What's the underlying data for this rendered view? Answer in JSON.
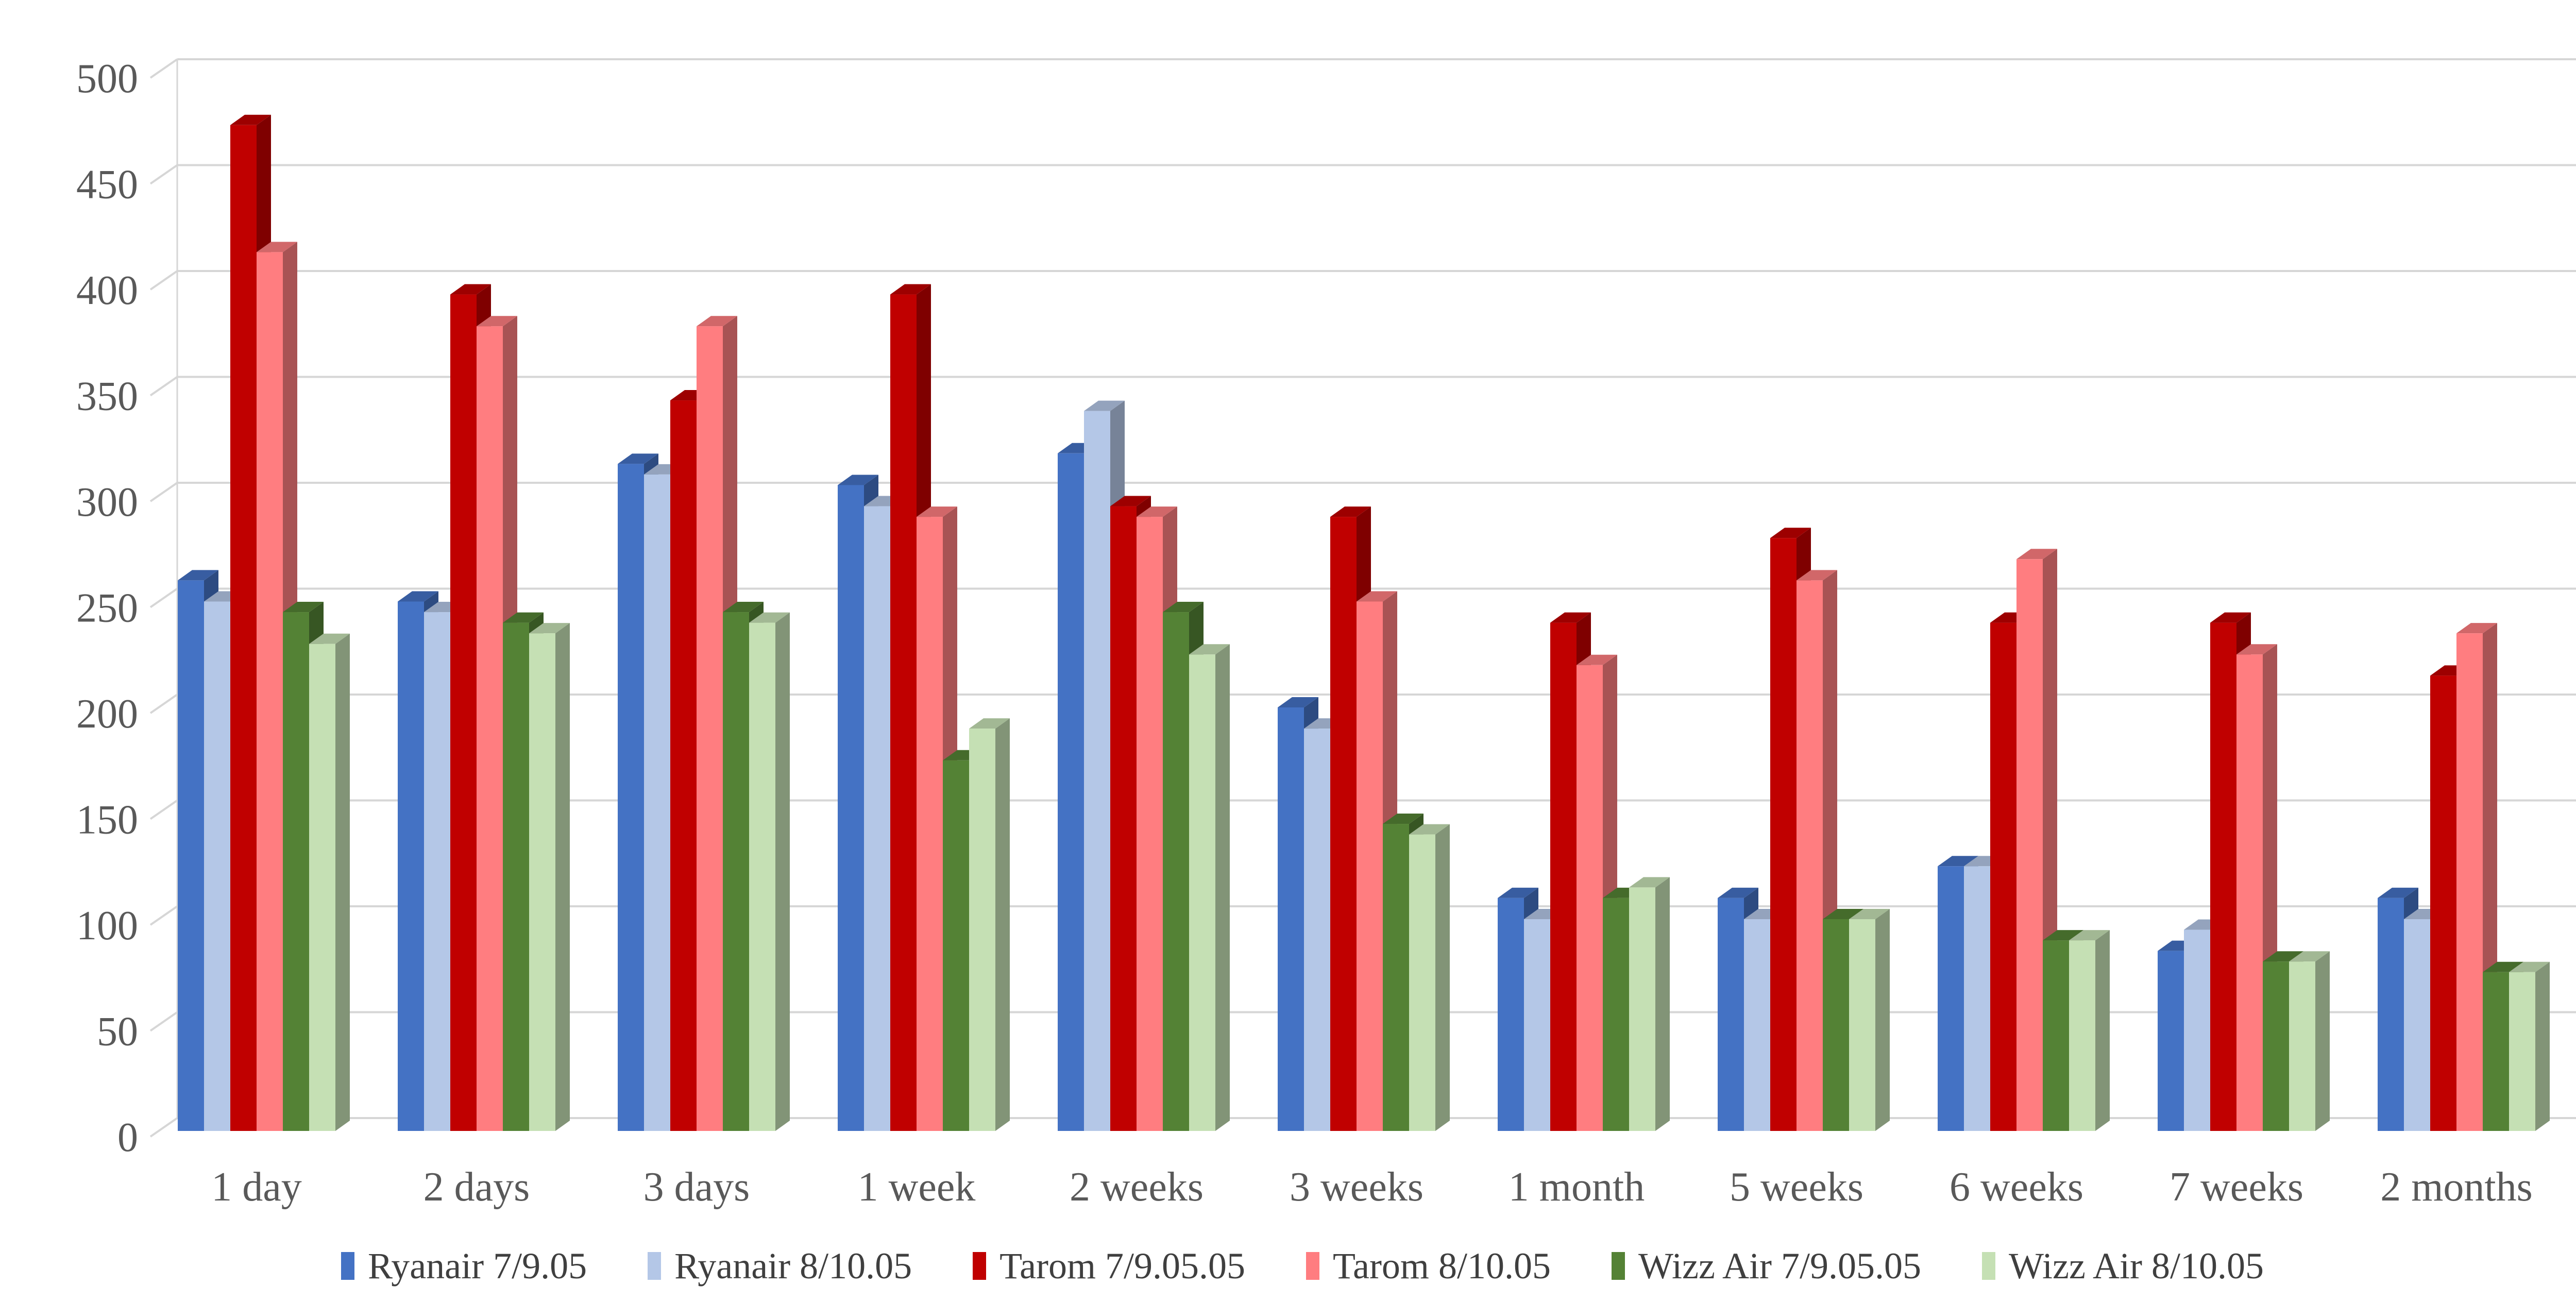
{
  "chart_data": {
    "type": "bar",
    "subtype": "3d-clustered-column",
    "title": "",
    "xlabel": "",
    "ylabel": "",
    "categories": [
      "1 day",
      "2 days",
      "3 days",
      "1 week",
      "2 weeks",
      "3 weeks",
      "1 month",
      "5 weeks",
      "6 weeks",
      "7 weeks",
      "2 months"
    ],
    "series": [
      {
        "name": "Ryanair 7/9.05",
        "color": "#4472C4",
        "values": [
          260,
          250,
          315,
          305,
          320,
          200,
          110,
          110,
          125,
          85,
          110
        ]
      },
      {
        "name": "Ryanair 8/10.05",
        "color": "#B4C7E7",
        "values": [
          250,
          245,
          310,
          295,
          340,
          190,
          100,
          100,
          125,
          95,
          100
        ]
      },
      {
        "name": "Tarom 7/9.05.05",
        "color": "#C00000",
        "values": [
          475,
          395,
          345,
          395,
          295,
          290,
          240,
          280,
          240,
          240,
          215
        ]
      },
      {
        "name": "Tarom 8/10.05",
        "color": "#FF7D80",
        "values": [
          415,
          380,
          380,
          290,
          290,
          250,
          220,
          260,
          270,
          225,
          235
        ]
      },
      {
        "name": "Wizz Air 7/9.05.05",
        "color": "#548235",
        "values": [
          245,
          240,
          245,
          175,
          245,
          145,
          110,
          100,
          90,
          80,
          75
        ]
      },
      {
        "name": "Wizz Air 8/10.05",
        "color": "#C5E0B4",
        "values": [
          230,
          235,
          240,
          190,
          225,
          140,
          115,
          100,
          90,
          80,
          75
        ]
      }
    ],
    "ylim": [
      0,
      500
    ],
    "yticks": [
      0,
      50,
      100,
      150,
      200,
      250,
      300,
      350,
      400,
      450,
      500
    ],
    "grid": true,
    "legend_position": "bottom",
    "colors": {
      "gridline": "#D6D6D6",
      "axis_text": "#595959",
      "legend_text": "#3F3F3F",
      "background": "#FFFFFF"
    }
  }
}
